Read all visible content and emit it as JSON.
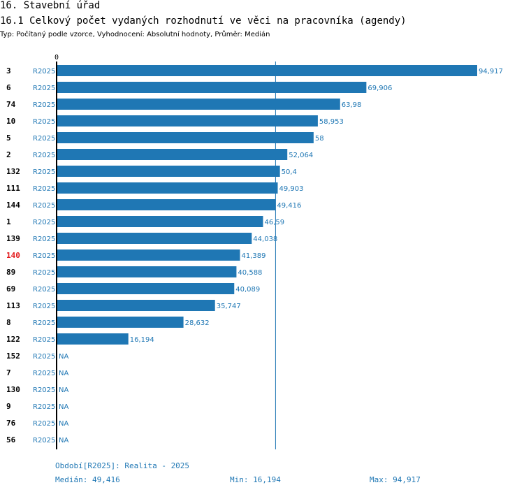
{
  "header": {
    "title": "16. Stavební úřad",
    "subtitle": "16.1 Celkový počet vydaných rozhodnutí ve věci na pracovníka (agendy)",
    "type_line": "Typ: Počítaný podle vzorce, Vyhodnocení: Absolutní hodnoty, Průměr: Medián"
  },
  "colors": {
    "bar": "#1f77b4",
    "label": "#1f77b4",
    "axis": "#000000",
    "highlight": "#e31a1c"
  },
  "chart_data": {
    "type": "bar",
    "orientation": "horizontal",
    "axis_zero_label": "0",
    "xlim": [
      0,
      94.917
    ],
    "median": 49.416,
    "series_label": "R2025",
    "highlighted_category": "140",
    "categories": [
      "3",
      "6",
      "74",
      "10",
      "5",
      "2",
      "132",
      "111",
      "144",
      "1",
      "139",
      "140",
      "89",
      "69",
      "113",
      "8",
      "122",
      "152",
      "7",
      "130",
      "9",
      "76",
      "56"
    ],
    "values": [
      94.917,
      69.906,
      63.98,
      58.953,
      58,
      52.064,
      50.4,
      49.903,
      49.416,
      46.59,
      44.038,
      41.389,
      40.588,
      40.089,
      35.747,
      28.632,
      16.194,
      null,
      null,
      null,
      null,
      null,
      null
    ],
    "value_labels": [
      "94,917",
      "69,906",
      "63,98",
      "58,953",
      "58",
      "52,064",
      "50,4",
      "49,903",
      "49,416",
      "46,59",
      "44,038",
      "41,389",
      "40,588",
      "40,089",
      "35,747",
      "28,632",
      "16,194",
      "NA",
      "NA",
      "NA",
      "NA",
      "NA",
      "NA"
    ]
  },
  "footer": {
    "period": "Období[R2025]: Realita - 2025",
    "median": "Medián: 49,416",
    "min": "Min: 16,194",
    "max": "Max: 94,917"
  }
}
